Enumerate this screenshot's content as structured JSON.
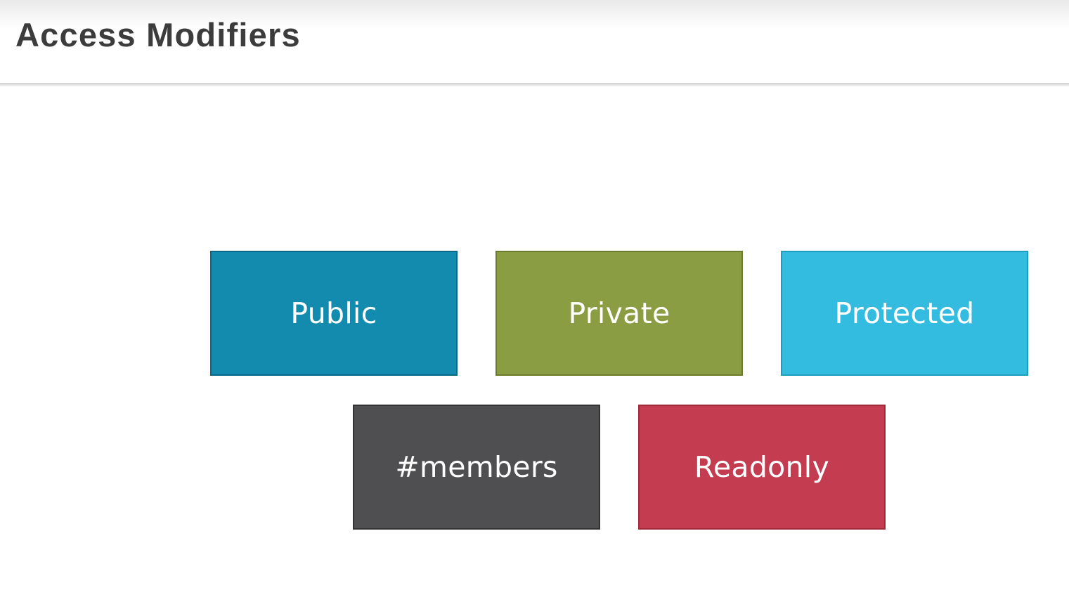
{
  "header": {
    "title": "Access Modifiers"
  },
  "tiles": [
    {
      "label": "Public",
      "color": "#138bae"
    },
    {
      "label": "Private",
      "color": "#8b9d42"
    },
    {
      "label": "Protected",
      "color": "#33bbe0"
    },
    {
      "label": "#members",
      "color": "#4f4f51"
    },
    {
      "label": "Readonly",
      "color": "#c43c4f"
    }
  ],
  "colors": {
    "title_text": "#3c3c3c",
    "tile_text": "#ffffff",
    "background": "#ffffff"
  }
}
